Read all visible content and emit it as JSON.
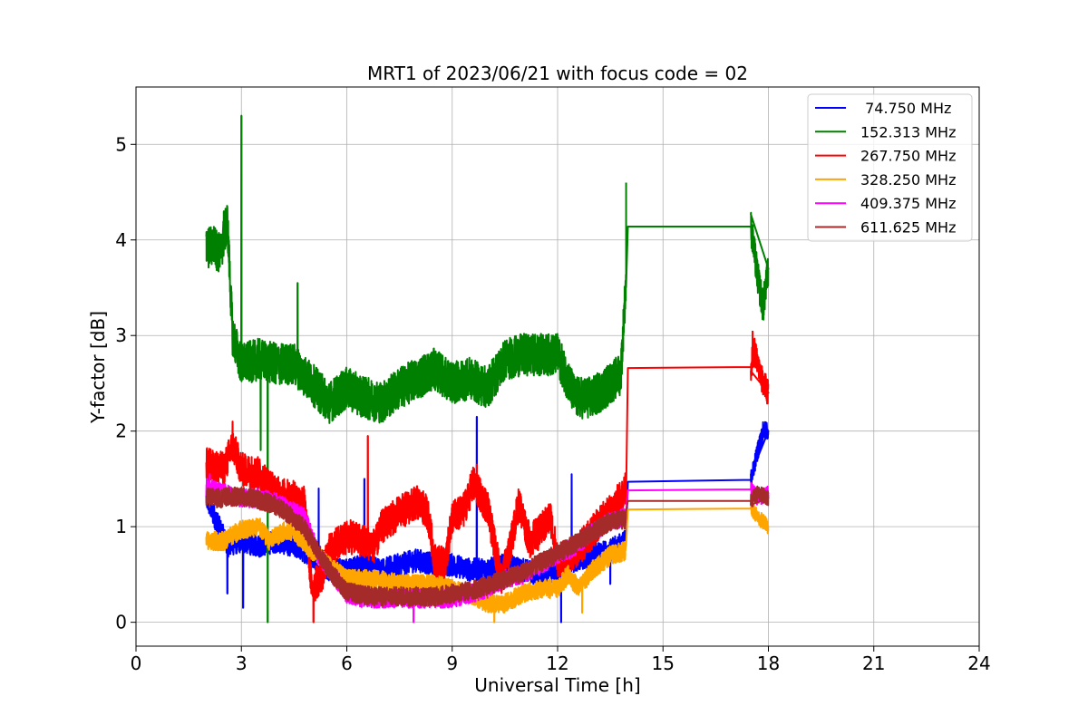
{
  "chart_data": {
    "type": "line",
    "title": "MRT1 of 2023/06/21 with focus code = 02",
    "xlabel": "Universal Time [h]",
    "ylabel": "Y-factor [dB]",
    "xlim": [
      0,
      24
    ],
    "ylim": [
      -0.25,
      5.6
    ],
    "xticks": [
      0,
      3,
      6,
      9,
      12,
      15,
      18,
      21,
      24
    ],
    "yticks": [
      0,
      1,
      2,
      3,
      4,
      5
    ],
    "grid": true,
    "legend_position": "top-right",
    "series": [
      {
        "name": "74.750 MHz",
        "legend_label": " 74.750 MHz",
        "color": "#0000ff",
        "noise": 0.12,
        "points": [
          [
            2.0,
            1.3
          ],
          [
            2.3,
            1.05
          ],
          [
            2.6,
            0.8
          ],
          [
            3.0,
            0.85
          ],
          [
            3.5,
            0.8
          ],
          [
            4.0,
            0.85
          ],
          [
            4.5,
            0.8
          ],
          [
            5.0,
            0.7
          ],
          [
            5.5,
            0.55
          ],
          [
            6.0,
            0.55
          ],
          [
            6.5,
            0.6
          ],
          [
            7.0,
            0.55
          ],
          [
            7.5,
            0.6
          ],
          [
            8.0,
            0.65
          ],
          [
            8.5,
            0.6
          ],
          [
            9.0,
            0.6
          ],
          [
            9.5,
            0.55
          ],
          [
            10.0,
            0.55
          ],
          [
            10.5,
            0.6
          ],
          [
            11.0,
            0.55
          ],
          [
            11.5,
            0.5
          ],
          [
            12.0,
            0.55
          ],
          [
            12.5,
            0.65
          ],
          [
            13.0,
            0.7
          ],
          [
            13.5,
            0.75
          ],
          [
            13.95,
            0.85
          ],
          [
            14.0,
            1.47
          ],
          [
            17.5,
            1.49
          ],
          [
            17.7,
            1.8
          ],
          [
            17.85,
            2.0
          ],
          [
            18.0,
            2.0
          ]
        ],
        "spikes": [
          [
            3.05,
            0.15
          ],
          [
            2.6,
            0.3
          ],
          [
            6.5,
            1.5
          ],
          [
            9.7,
            2.15
          ],
          [
            12.4,
            1.55
          ],
          [
            12.1,
            0.0
          ],
          [
            13.5,
            0.4
          ],
          [
            5.2,
            1.4
          ]
        ]
      },
      {
        "name": "152.313 MHz",
        "color": "#008000",
        "noise": 0.22,
        "points": [
          [
            2.0,
            3.9
          ],
          [
            2.2,
            3.95
          ],
          [
            2.4,
            3.85
          ],
          [
            2.6,
            4.2
          ],
          [
            2.75,
            3.0
          ],
          [
            3.0,
            2.7
          ],
          [
            3.5,
            2.75
          ],
          [
            4.0,
            2.7
          ],
          [
            4.5,
            2.7
          ],
          [
            5.0,
            2.5
          ],
          [
            5.5,
            2.3
          ],
          [
            6.0,
            2.45
          ],
          [
            6.5,
            2.35
          ],
          [
            7.0,
            2.3
          ],
          [
            7.5,
            2.45
          ],
          [
            8.0,
            2.55
          ],
          [
            8.5,
            2.65
          ],
          [
            9.0,
            2.5
          ],
          [
            9.5,
            2.55
          ],
          [
            10.0,
            2.45
          ],
          [
            10.5,
            2.75
          ],
          [
            11.0,
            2.8
          ],
          [
            11.5,
            2.8
          ],
          [
            12.0,
            2.8
          ],
          [
            12.5,
            2.35
          ],
          [
            13.0,
            2.35
          ],
          [
            13.5,
            2.5
          ],
          [
            13.8,
            2.6
          ],
          [
            13.95,
            3.6
          ],
          [
            14.0,
            4.14
          ],
          [
            17.5,
            4.14
          ],
          [
            17.7,
            3.6
          ],
          [
            17.85,
            3.3
          ],
          [
            18.0,
            3.7
          ]
        ],
        "spikes": [
          [
            3.0,
            5.3
          ],
          [
            3.75,
            0.0
          ],
          [
            4.6,
            3.55
          ],
          [
            2.5,
            4.3
          ],
          [
            3.55,
            1.8
          ],
          [
            13.95,
            4.6
          ]
        ]
      },
      {
        "name": "267.750 MHz",
        "color": "#ff0000",
        "noise": 0.18,
        "points": [
          [
            2.0,
            1.65
          ],
          [
            2.5,
            1.6
          ],
          [
            2.75,
            1.85
          ],
          [
            3.0,
            1.6
          ],
          [
            3.5,
            1.55
          ],
          [
            4.0,
            1.35
          ],
          [
            4.5,
            1.3
          ],
          [
            4.8,
            1.25
          ],
          [
            5.0,
            0.35
          ],
          [
            5.3,
            0.5
          ],
          [
            5.5,
            0.75
          ],
          [
            6.0,
            0.9
          ],
          [
            6.5,
            0.85
          ],
          [
            6.8,
            0.8
          ],
          [
            7.0,
            1.0
          ],
          [
            7.5,
            1.15
          ],
          [
            8.0,
            1.25
          ],
          [
            8.3,
            1.15
          ],
          [
            8.5,
            0.65
          ],
          [
            8.8,
            0.6
          ],
          [
            9.0,
            1.1
          ],
          [
            9.3,
            1.15
          ],
          [
            9.6,
            1.45
          ],
          [
            10.0,
            1.2
          ],
          [
            10.4,
            0.45
          ],
          [
            10.6,
            0.7
          ],
          [
            10.9,
            1.25
          ],
          [
            11.2,
            0.85
          ],
          [
            11.5,
            0.95
          ],
          [
            11.8,
            1.1
          ],
          [
            12.0,
            0.65
          ],
          [
            12.4,
            0.7
          ],
          [
            12.8,
            0.85
          ],
          [
            13.2,
            1.05
          ],
          [
            13.6,
            1.2
          ],
          [
            13.95,
            1.4
          ],
          [
            14.0,
            2.66
          ],
          [
            17.5,
            2.67
          ],
          [
            17.6,
            2.85
          ],
          [
            17.8,
            2.55
          ],
          [
            18.0,
            2.4
          ]
        ],
        "spikes": [
          [
            6.6,
            1.95
          ],
          [
            2.75,
            2.1
          ],
          [
            9.7,
            1.65
          ],
          [
            5.05,
            0.0
          ],
          [
            17.55,
            3.05
          ]
        ]
      },
      {
        "name": "328.250 MHz",
        "color": "#ffa500",
        "noise": 0.1,
        "points": [
          [
            2.0,
            0.85
          ],
          [
            2.5,
            0.85
          ],
          [
            3.0,
            0.97
          ],
          [
            3.5,
            1.0
          ],
          [
            3.8,
            0.85
          ],
          [
            4.2,
            0.95
          ],
          [
            4.5,
            0.95
          ],
          [
            5.0,
            0.75
          ],
          [
            5.5,
            0.6
          ],
          [
            6.0,
            0.45
          ],
          [
            6.5,
            0.45
          ],
          [
            7.0,
            0.45
          ],
          [
            7.5,
            0.4
          ],
          [
            8.0,
            0.4
          ],
          [
            8.5,
            0.4
          ],
          [
            9.0,
            0.35
          ],
          [
            9.5,
            0.3
          ],
          [
            10.0,
            0.2
          ],
          [
            10.5,
            0.2
          ],
          [
            11.0,
            0.3
          ],
          [
            11.5,
            0.35
          ],
          [
            12.0,
            0.35
          ],
          [
            12.3,
            0.5
          ],
          [
            12.6,
            0.35
          ],
          [
            13.0,
            0.55
          ],
          [
            13.5,
            0.7
          ],
          [
            13.95,
            0.75
          ],
          [
            14.0,
            1.18
          ],
          [
            17.5,
            1.19
          ],
          [
            17.7,
            1.1
          ],
          [
            18.0,
            1.0
          ]
        ],
        "spikes": [
          [
            10.2,
            0.0
          ],
          [
            12.7,
            0.1
          ]
        ]
      },
      {
        "name": "409.375 MHz",
        "color": "#ff00ff",
        "noise": 0.1,
        "points": [
          [
            2.0,
            1.4
          ],
          [
            2.5,
            1.35
          ],
          [
            3.0,
            1.3
          ],
          [
            3.5,
            1.3
          ],
          [
            4.0,
            1.25
          ],
          [
            4.5,
            1.15
          ],
          [
            4.8,
            1.1
          ],
          [
            5.2,
            0.7
          ],
          [
            5.6,
            0.5
          ],
          [
            6.0,
            0.3
          ],
          [
            6.5,
            0.25
          ],
          [
            7.0,
            0.25
          ],
          [
            7.5,
            0.25
          ],
          [
            8.0,
            0.25
          ],
          [
            8.5,
            0.25
          ],
          [
            9.0,
            0.25
          ],
          [
            9.5,
            0.3
          ],
          [
            10.0,
            0.35
          ],
          [
            10.5,
            0.45
          ],
          [
            11.0,
            0.5
          ],
          [
            11.5,
            0.6
          ],
          [
            12.0,
            0.7
          ],
          [
            12.5,
            0.8
          ],
          [
            13.0,
            0.95
          ],
          [
            13.5,
            1.05
          ],
          [
            13.95,
            1.1
          ],
          [
            14.0,
            1.38
          ],
          [
            17.5,
            1.39
          ],
          [
            17.7,
            1.3
          ],
          [
            18.0,
            1.35
          ]
        ],
        "spikes": [
          [
            2.1,
            1.55
          ],
          [
            7.9,
            0.0
          ]
        ]
      },
      {
        "name": "611.625 MHz",
        "color": "#a52a2a",
        "noise": 0.1,
        "points": [
          [
            2.0,
            1.3
          ],
          [
            2.5,
            1.3
          ],
          [
            3.0,
            1.32
          ],
          [
            3.5,
            1.28
          ],
          [
            4.0,
            1.22
          ],
          [
            4.5,
            1.08
          ],
          [
            4.8,
            0.98
          ],
          [
            5.2,
            0.72
          ],
          [
            5.6,
            0.5
          ],
          [
            6.0,
            0.32
          ],
          [
            6.5,
            0.28
          ],
          [
            7.0,
            0.27
          ],
          [
            7.5,
            0.27
          ],
          [
            8.0,
            0.27
          ],
          [
            8.5,
            0.27
          ],
          [
            9.0,
            0.3
          ],
          [
            9.5,
            0.33
          ],
          [
            10.0,
            0.38
          ],
          [
            10.5,
            0.45
          ],
          [
            11.0,
            0.52
          ],
          [
            11.5,
            0.62
          ],
          [
            12.0,
            0.72
          ],
          [
            12.5,
            0.82
          ],
          [
            13.0,
            0.95
          ],
          [
            13.5,
            1.05
          ],
          [
            13.95,
            1.08
          ],
          [
            14.0,
            1.27
          ],
          [
            17.5,
            1.27
          ],
          [
            17.7,
            1.35
          ],
          [
            18.0,
            1.3
          ]
        ],
        "spikes": []
      }
    ]
  }
}
